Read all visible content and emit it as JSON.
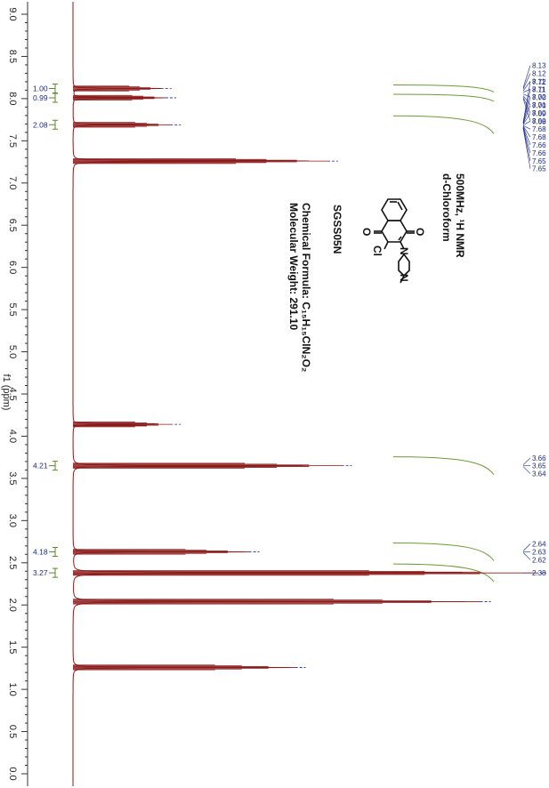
{
  "chart_data": {
    "type": "line",
    "xlabel": "f1 (ppm)",
    "xlim": [
      0.0,
      9.1
    ],
    "ticks": [
      "9.0",
      "8.5",
      "8.0",
      "7.5",
      "7.0",
      "6.5",
      "6.0",
      "5.5",
      "5.0",
      "4.5",
      "4.0",
      "3.5",
      "3.0",
      "2.5",
      "2.0",
      "1.5",
      "1.0",
      "0.5",
      "0.0"
    ],
    "peaks": [
      {
        "ppm": 8.12,
        "height": 0.19
      },
      {
        "ppm": 8.01,
        "height": 0.2
      },
      {
        "ppm": 7.69,
        "height": 0.21
      },
      {
        "ppm": 7.26,
        "height": 0.55
      },
      {
        "ppm": 4.14,
        "height": 0.21
      },
      {
        "ppm": 3.65,
        "height": 0.58
      },
      {
        "ppm": 2.63,
        "height": 0.38
      },
      {
        "ppm": 2.38,
        "height": 1.0
      },
      {
        "ppm": 2.04,
        "height": 0.88
      },
      {
        "ppm": 1.26,
        "height": 0.48
      }
    ],
    "integrals": [
      {
        "label": "1.00",
        "ppm": 8.12
      },
      {
        "label": "0.99",
        "ppm": 8.01
      },
      {
        "label": "2.08",
        "ppm": 7.69
      },
      {
        "label": "4.21",
        "ppm": 3.65
      },
      {
        "label": "4.18",
        "ppm": 2.63
      },
      {
        "label": "3.27",
        "ppm": 2.38
      }
    ],
    "peak_label_groups": [
      {
        "labels": [
          "8.13",
          "8.12",
          "8.11",
          "8.11",
          "8.02",
          "8.01",
          "8.00",
          "8.00"
        ],
        "ppm_from": 8.13,
        "ppm_to": 8.0
      },
      {
        "labels": [
          "7.72",
          "7.71",
          "7.70",
          "7.70",
          "7.69",
          "7.68",
          "7.68",
          "7.68",
          "7.66",
          "7.66",
          "7.65",
          "7.65"
        ],
        "ppm_from": 7.72,
        "ppm_to": 7.65
      },
      {
        "labels": [
          "3.66",
          "3.65",
          "3.64"
        ],
        "ppm_from": 3.66,
        "ppm_to": 3.64
      },
      {
        "labels": [
          "2.64",
          "2.63",
          "2.62"
        ],
        "ppm_from": 2.64,
        "ppm_to": 2.62
      },
      {
        "labels": [
          "2.38"
        ],
        "ppm_from": 2.38,
        "ppm_to": 2.38
      }
    ]
  },
  "info": {
    "instrument": "500MHz, ¹H NMR",
    "solvent": "d-Chloroform",
    "compound_id": "SGSS05N",
    "formula": "Chemical Formula: C₁₅H₁₅ClN₂O₂",
    "weight": "Molecular Weight: 291.10",
    "structure_atoms": [
      "O",
      "O",
      "Cl",
      "N",
      "N"
    ]
  },
  "colors": {
    "spectrum": "#8b1a1a",
    "integral_curve": "#6b9a3a",
    "integral_bracket": "#5a8a2a",
    "labels": "#1a2a8a"
  }
}
